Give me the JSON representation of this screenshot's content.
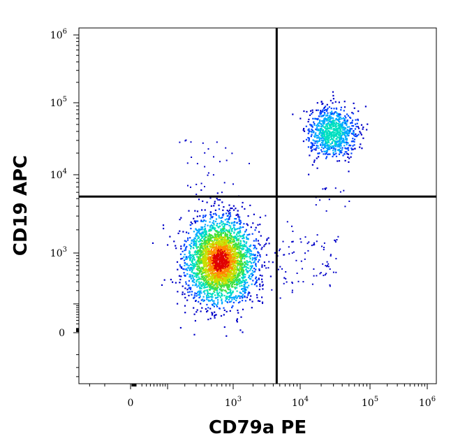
{
  "chart_data": {
    "type": "scatter",
    "subtype": "flow-cytometry density dot plot with quadrant gates",
    "xlabel": "CD79a PE",
    "ylabel": "CD19 APC",
    "x_scale": "biexponential (logicle)",
    "y_scale": "biexponential (logicle)",
    "xlim": [
      -150,
      1200000
    ],
    "ylim": [
      -200,
      1200000
    ],
    "x_ticks": [
      {
        "value": 0,
        "base": "0",
        "exp": ""
      },
      {
        "value": 1000,
        "base": "10",
        "exp": "3"
      },
      {
        "value": 10000,
        "base": "10",
        "exp": "4"
      },
      {
        "value": 100000,
        "base": "10",
        "exp": "5"
      },
      {
        "value": 1000000,
        "base": "10",
        "exp": "6"
      }
    ],
    "y_ticks": [
      {
        "value": 0,
        "base": "0",
        "exp": ""
      },
      {
        "value": 1000,
        "base": "10",
        "exp": "3"
      },
      {
        "value": 10000,
        "base": "10",
        "exp": "4"
      },
      {
        "value": 100000,
        "base": "10",
        "exp": "5"
      },
      {
        "value": 1000000,
        "base": "10",
        "exp": "6"
      }
    ],
    "quadrant_gate": {
      "x": 4500,
      "y": 5300
    },
    "populations": [
      {
        "center_x": 650,
        "center_y": 750,
        "relative_density": "high"
      },
      {
        "center_x": 28000,
        "center_y": 40000,
        "relative_density": "medium"
      }
    ],
    "density_colors": [
      "#0000c8",
      "#0044ff",
      "#00aaff",
      "#00e0c0",
      "#40e040",
      "#c8e000",
      "#ff8c00",
      "#e00000"
    ],
    "grid": false,
    "legend": "none"
  }
}
